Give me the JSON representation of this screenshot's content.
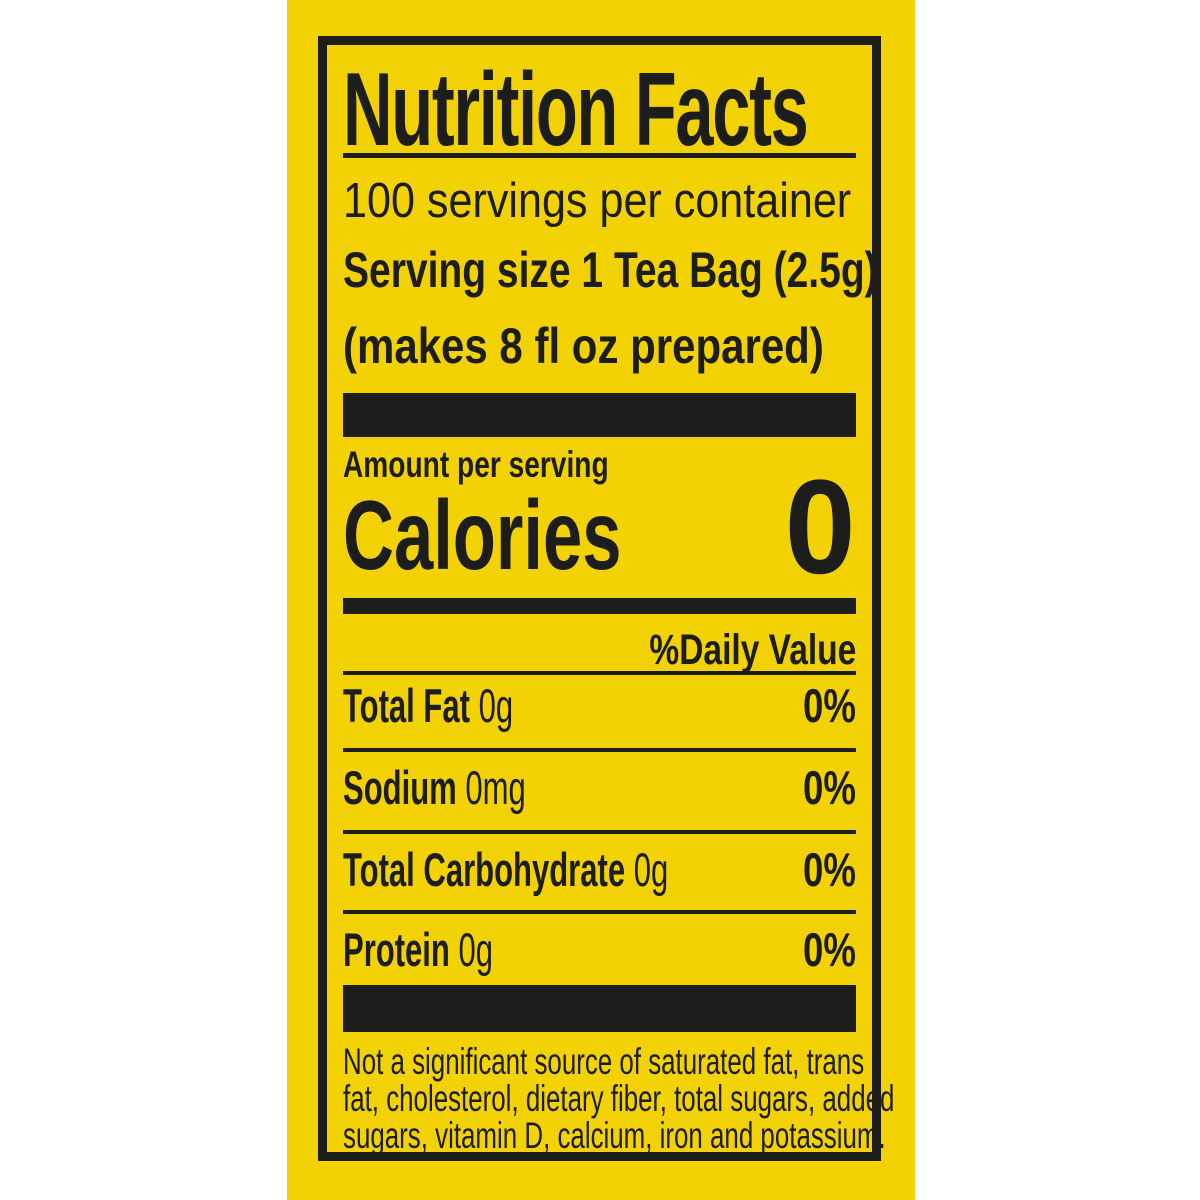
{
  "label": {
    "title": "Nutrition Facts",
    "servings_per_container": "100 servings per container",
    "serving_size_label": "Serving size 1 Tea Bag (2.5g)",
    "serving_size_note": "(makes 8 fl oz prepared)",
    "amount_per_serving": "Amount per serving",
    "calories_label": "Calories",
    "calories_value": "0",
    "daily_value_header": "%Daily Value",
    "rows": [
      {
        "name": "Total Fat",
        "amount": "0g",
        "daily_value": "0%"
      },
      {
        "name": "Sodium",
        "amount": "0mg",
        "daily_value": "0%"
      },
      {
        "name": "Total Carbohydrate",
        "amount": "0g",
        "daily_value": "0%"
      },
      {
        "name": "Protein",
        "amount": "0g",
        "daily_value": "0%"
      }
    ],
    "footnote_lines": [
      "Not a significant source of saturated fat, trans",
      "fat, cholesterol, dietary fiber, total sugars, added",
      "sugars, vitamin D, calcium, iron and potassium."
    ],
    "colors": {
      "label_yellow": "#F2D204",
      "ink_black": "#1D1D1B",
      "page_white": "#FFFFFF"
    }
  }
}
